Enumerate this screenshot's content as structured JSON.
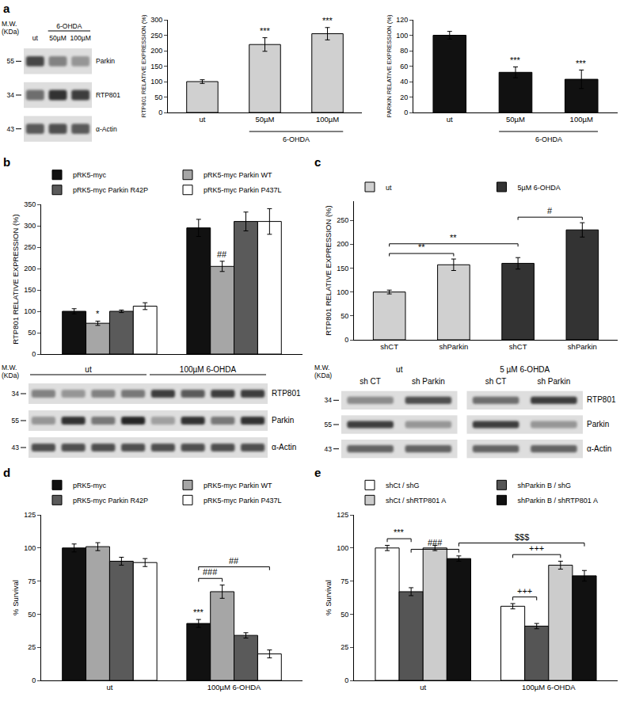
{
  "panel_labels": [
    "a",
    "b",
    "c",
    "d",
    "e"
  ],
  "blots": [
    {
      "mw_title": [
        "M.W.",
        "(KDa)"
      ],
      "lanes": [
        "ut",
        "50µM",
        "100µM"
      ],
      "groups": [
        {
          "text": "6-OHDA",
          "from": 1,
          "to": 2
        }
      ],
      "rows": [
        {
          "name": "Parkin",
          "mw": "55",
          "bands": [
            0.75,
            0.45,
            0.35
          ]
        },
        {
          "name": "RTP801",
          "mw": "34",
          "bands": [
            0.55,
            0.85,
            0.8
          ]
        },
        {
          "name": "α-Actin",
          "mw": "43",
          "bands": [
            0.65,
            0.7,
            0.65
          ]
        }
      ]
    },
    {
      "mw_title": [
        "M.W.",
        "(KDa)"
      ],
      "groups": [
        {
          "text": "ut",
          "from": 0,
          "to": 3
        },
        {
          "text": "100µM 6-OHDA",
          "from": 4,
          "to": 7
        }
      ],
      "rows": [
        {
          "name": "RTP801",
          "mw": "34",
          "bands": [
            0.45,
            0.35,
            0.45,
            0.5,
            0.8,
            0.65,
            0.8,
            0.8
          ]
        },
        {
          "name": "Parkin",
          "mw": "55",
          "bands": [
            0.35,
            0.85,
            0.5,
            0.9,
            0.3,
            0.85,
            0.5,
            0.85
          ]
        },
        {
          "name": "α-Actin",
          "mw": "43",
          "bands": [
            0.7,
            0.7,
            0.7,
            0.7,
            0.7,
            0.7,
            0.7,
            0.7
          ]
        }
      ]
    },
    {
      "mw_title": [
        "M.W.",
        "(KDa)"
      ],
      "lanes": [
        "sh CT",
        "sh Parkin",
        "sh CT",
        "sh Parkin"
      ],
      "groups": [
        {
          "text": "ut",
          "from": 0,
          "to": 1
        },
        {
          "text": "5 µM 6-OHDA",
          "from": 2,
          "to": 3
        }
      ],
      "rows": [
        {
          "name": "RTP801",
          "mw": "34",
          "bands": [
            0.4,
            0.7,
            0.55,
            0.8
          ]
        },
        {
          "name": "Parkin",
          "mw": "55",
          "bands": [
            0.8,
            0.35,
            0.8,
            0.35
          ]
        },
        {
          "name": "α-Actin",
          "mw": "43",
          "bands": [
            0.6,
            0.6,
            0.6,
            0.6
          ]
        }
      ]
    }
  ],
  "chart_data": [
    {
      "type": "bar",
      "ylabel": "RTP801 RELATIVE EXPRESSION (%)",
      "categories": [
        "ut",
        "50µM",
        "100µM"
      ],
      "series": [
        {
          "color": "#d0d0d0",
          "values": [
            100,
            220,
            255
          ],
          "errors": [
            6,
            22,
            20
          ]
        }
      ],
      "ylim": [
        0,
        300
      ],
      "yticks": [
        0,
        50,
        100,
        150,
        200,
        250,
        300
      ],
      "grid": false,
      "marks": [
        {
          "series": 0,
          "category": 1,
          "label": "***"
        },
        {
          "series": 0,
          "category": 2,
          "label": "***"
        }
      ],
      "group_label": {
        "text": "6-OHDA",
        "from": 1,
        "to": 2
      }
    },
    {
      "type": "bar",
      "ylabel": "PARKIN RELATIVE EXPRESSION (%)",
      "categories": [
        "ut",
        "50µM",
        "100µM"
      ],
      "series": [
        {
          "color": "#111111",
          "values": [
            100,
            52,
            43
          ],
          "errors": [
            5,
            7,
            12
          ]
        }
      ],
      "ylim": [
        0,
        120
      ],
      "yticks": [
        0,
        20,
        40,
        60,
        80,
        100,
        120
      ],
      "grid": false,
      "marks": [
        {
          "series": 0,
          "category": 1,
          "label": "***"
        },
        {
          "series": 0,
          "category": 2,
          "label": "***"
        }
      ],
      "group_label": {
        "text": "6-OHDA",
        "from": 1,
        "to": 2
      }
    },
    {
      "type": "bar",
      "ylabel": "RTP801 RELATIVE EXPRESSION (%)",
      "categories": [
        "ut",
        "100µM 6-OHDA"
      ],
      "tick_labels": "y",
      "legend": "top",
      "series": [
        {
          "name": "pRK5-myc",
          "color": "#111111",
          "values": [
            100,
            295
          ],
          "errors": [
            6,
            20
          ]
        },
        {
          "name": "pRK5-myc Parkin WT",
          "color": "#a6a6a6",
          "values": [
            72,
            205
          ],
          "errors": [
            5,
            12
          ]
        },
        {
          "name": "pRK5-myc Parkin R42P",
          "color": "#5a5a5a",
          "values": [
            100,
            310
          ],
          "errors": [
            3,
            22
          ]
        },
        {
          "name": "pRK5-myc Parkin P437L",
          "color": "#ffffff",
          "values": [
            112,
            310
          ],
          "errors": [
            8,
            30
          ]
        }
      ],
      "ylim": [
        0,
        350
      ],
      "yticks": [
        0,
        50,
        100,
        150,
        200,
        250,
        300,
        350
      ],
      "grid": false,
      "marks": [
        {
          "series": 1,
          "category": 0,
          "label": "*"
        },
        {
          "series": 1,
          "category": 1,
          "label": "##"
        }
      ]
    },
    {
      "type": "bar",
      "ylabel": "RTP801 RELATIVE EXPRESSION (%)",
      "categories": [
        "shCT",
        "shParkin",
        "shCT",
        "shParkin"
      ],
      "legend": "top",
      "series": [
        {
          "name": "ut",
          "color": "#d0d0d0",
          "values": [
            100,
            157,
            null,
            null
          ],
          "errors": [
            4,
            12,
            null,
            null
          ]
        },
        {
          "name": "5µM 6-OHDA",
          "color": "#333333",
          "values": [
            null,
            null,
            160,
            230
          ],
          "errors": [
            null,
            null,
            12,
            15
          ]
        }
      ],
      "ylim": [
        0,
        290
      ],
      "yticks": [
        0,
        50,
        100,
        150,
        200,
        250
      ],
      "grid": false,
      "brackets": [
        {
          "from": [
            0,
            0
          ],
          "to": [
            0,
            1
          ],
          "label": "**"
        },
        {
          "from": [
            0,
            0
          ],
          "to": [
            1,
            2
          ],
          "label": "**"
        },
        {
          "from": [
            1,
            2
          ],
          "to": [
            1,
            3
          ],
          "label": "#"
        }
      ]
    },
    {
      "type": "bar",
      "ylabel": "% Survival",
      "categories": [
        "ut",
        "100µM 6-OHDA"
      ],
      "legend": "top",
      "series": [
        {
          "name": "pRK5-myc",
          "color": "#111111",
          "values": [
            100,
            43
          ],
          "errors": [
            3,
            3
          ]
        },
        {
          "name": "pRK5-myc Parkin WT",
          "color": "#a6a6a6",
          "values": [
            101,
            67
          ],
          "errors": [
            3,
            5
          ]
        },
        {
          "name": "pRK5-myc Parkin R42P",
          "color": "#5a5a5a",
          "values": [
            90,
            34
          ],
          "errors": [
            3,
            2
          ]
        },
        {
          "name": "pRK5-myc Parkin P437L",
          "color": "#ffffff",
          "values": [
            89,
            20
          ],
          "errors": [
            3,
            3
          ]
        }
      ],
      "ylim": [
        0,
        125
      ],
      "yticks": [
        0,
        25,
        50,
        75,
        100,
        125
      ],
      "grid": false,
      "marks": [
        {
          "series": 0,
          "category": 1,
          "label": "***"
        }
      ],
      "brackets": [
        {
          "from": [
            0,
            1
          ],
          "to": [
            1,
            1
          ],
          "label": "###"
        },
        {
          "from": [
            0,
            1
          ],
          "to": [
            3,
            1
          ],
          "label": "##"
        }
      ]
    },
    {
      "type": "bar",
      "ylabel": "% Survival",
      "categories": [
        "ut",
        "100µM 6-OHDA"
      ],
      "legend": "top",
      "series": [
        {
          "name": "shCt / shG",
          "color": "#ffffff",
          "values": [
            100,
            56
          ],
          "errors": [
            2,
            2
          ]
        },
        {
          "name": "shParkin B / shG",
          "color": "#555555",
          "values": [
            67,
            41
          ],
          "errors": [
            3,
            2
          ]
        },
        {
          "name": "shCt / shRTP801 A",
          "color": "#cccccc",
          "values": [
            100,
            87
          ],
          "errors": [
            2,
            3
          ]
        },
        {
          "name": "shParkin B / shRTP801 A",
          "color": "#111111",
          "values": [
            92,
            79
          ],
          "errors": [
            2,
            4
          ]
        }
      ],
      "ylim": [
        0,
        125
      ],
      "yticks": [
        0,
        25,
        50,
        75,
        100,
        125
      ],
      "grid": false,
      "brackets": [
        {
          "from": [
            0,
            0
          ],
          "to": [
            1,
            0
          ],
          "label": "***"
        },
        {
          "from": [
            1,
            0
          ],
          "to": [
            3,
            0
          ],
          "label": "###"
        },
        {
          "from": [
            0,
            1
          ],
          "to": [
            1,
            1
          ],
          "label": "+++"
        },
        {
          "from": [
            0,
            1
          ],
          "to": [
            2,
            1
          ],
          "label": "+++"
        },
        {
          "from": [
            3,
            0
          ],
          "to": [
            3,
            1
          ],
          "label": "$$$"
        }
      ]
    }
  ]
}
